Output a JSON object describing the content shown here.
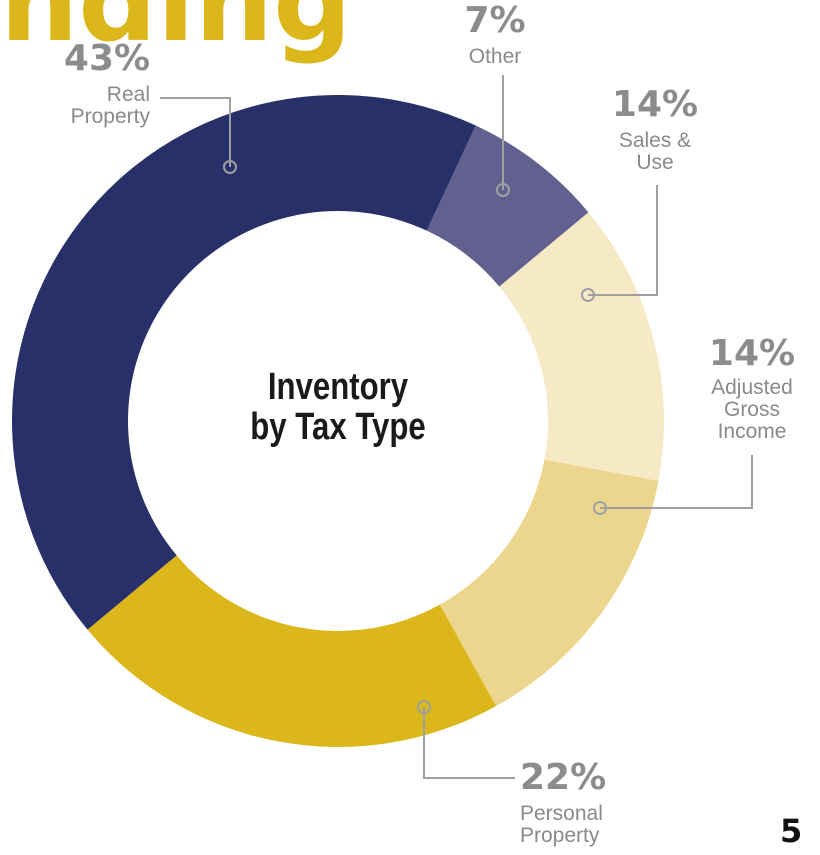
{
  "chart_data": {
    "type": "donut",
    "title": "nding",
    "center_label": [
      "Inventory",
      "by Tax Type"
    ],
    "categories": [
      "Other",
      "Sales & Use",
      "Adjusted Gross Income",
      "Personal Property",
      "Real Property"
    ],
    "values": [
      7,
      14,
      14,
      22,
      43
    ],
    "value_labels": [
      "7%",
      "14%",
      "14%",
      "22%",
      "43%"
    ],
    "colors": [
      "#62608f",
      "#f5e9c6",
      "#ecd58d",
      "#dbb71c",
      "#283069"
    ],
    "page_number": "5"
  }
}
